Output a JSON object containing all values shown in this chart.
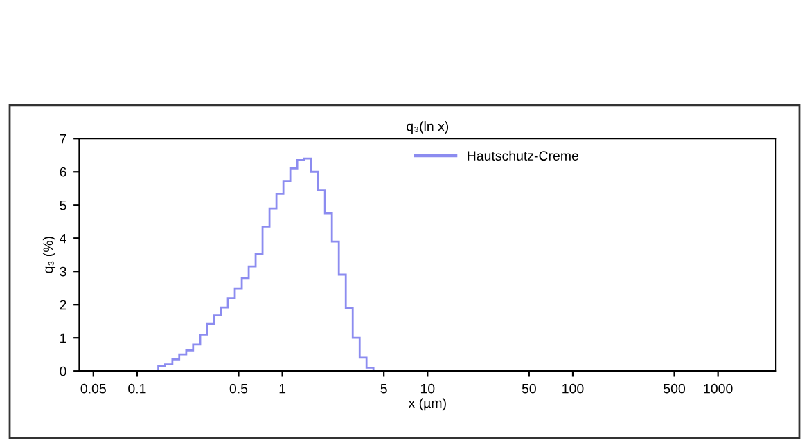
{
  "chart_data": {
    "type": "histogram",
    "title": "q₃(ln x)",
    "xlabel": "x (µm)",
    "ylabel": "q₃ (%)",
    "bins": [
      0.14,
      0.156,
      0.175,
      0.195,
      0.218,
      0.243,
      0.272,
      0.303,
      0.339,
      0.378,
      0.422,
      0.471,
      0.526,
      0.587,
      0.655,
      0.731,
      0.816,
      0.911,
      1.017,
      1.135,
      1.267,
      1.414,
      1.578,
      1.762,
      1.966,
      2.195,
      2.45,
      2.735,
      3.053,
      3.408,
      3.8,
      4.24
    ],
    "series": [
      {
        "name": "Hautschutz-Creme",
        "color": "#8c8cf0",
        "values": [
          0.15,
          0.2,
          0.35,
          0.5,
          0.62,
          0.8,
          1.1,
          1.42,
          1.68,
          1.92,
          2.2,
          2.48,
          2.8,
          3.15,
          3.52,
          4.35,
          4.9,
          5.33,
          5.72,
          6.1,
          6.35,
          6.4,
          6.0,
          5.45,
          4.75,
          3.9,
          2.9,
          1.9,
          1.0,
          0.4,
          0.1
        ]
      }
    ],
    "log": "x",
    "xlim": [
      0.04,
      2500
    ],
    "xticks": [
      0.05,
      0.1,
      0.5,
      1,
      5,
      10,
      50,
      100,
      500,
      1000
    ],
    "ylim": [
      0,
      7
    ],
    "yticks": [
      0,
      1,
      2,
      3,
      4,
      5,
      6,
      7
    ],
    "grid": false,
    "legend": "top"
  }
}
